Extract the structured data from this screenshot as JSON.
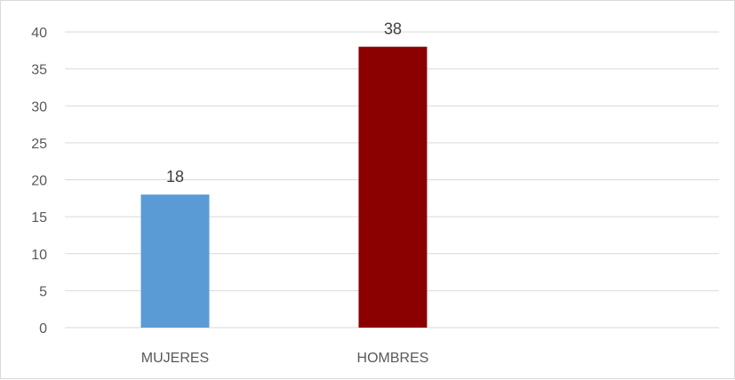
{
  "chart_data": {
    "type": "bar",
    "title": "",
    "xlabel": "",
    "ylabel": "",
    "categories": [
      "MUJERES",
      "HOMBRES"
    ],
    "values": [
      18,
      38
    ],
    "data_labels": [
      "18",
      "38"
    ],
    "bar_colors": [
      "#5b9bd5",
      "#8b0000"
    ],
    "ylim": [
      0,
      40
    ],
    "yticks": [
      0,
      5,
      10,
      15,
      20,
      25,
      30,
      35,
      40
    ],
    "grid": true,
    "legend": "none"
  }
}
